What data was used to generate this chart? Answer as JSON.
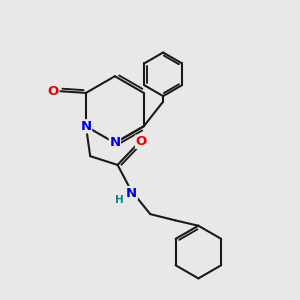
{
  "bg_color": "#e8e8e8",
  "bond_color": "#1a1a1a",
  "bond_width": 1.5,
  "atom_colors": {
    "N": "#0000ee",
    "O": "#ee0000",
    "H": "#008888",
    "C": "#1a1a1a"
  },
  "font_size_atoms": 8.5,
  "fig_bg": "#e8e8e8"
}
